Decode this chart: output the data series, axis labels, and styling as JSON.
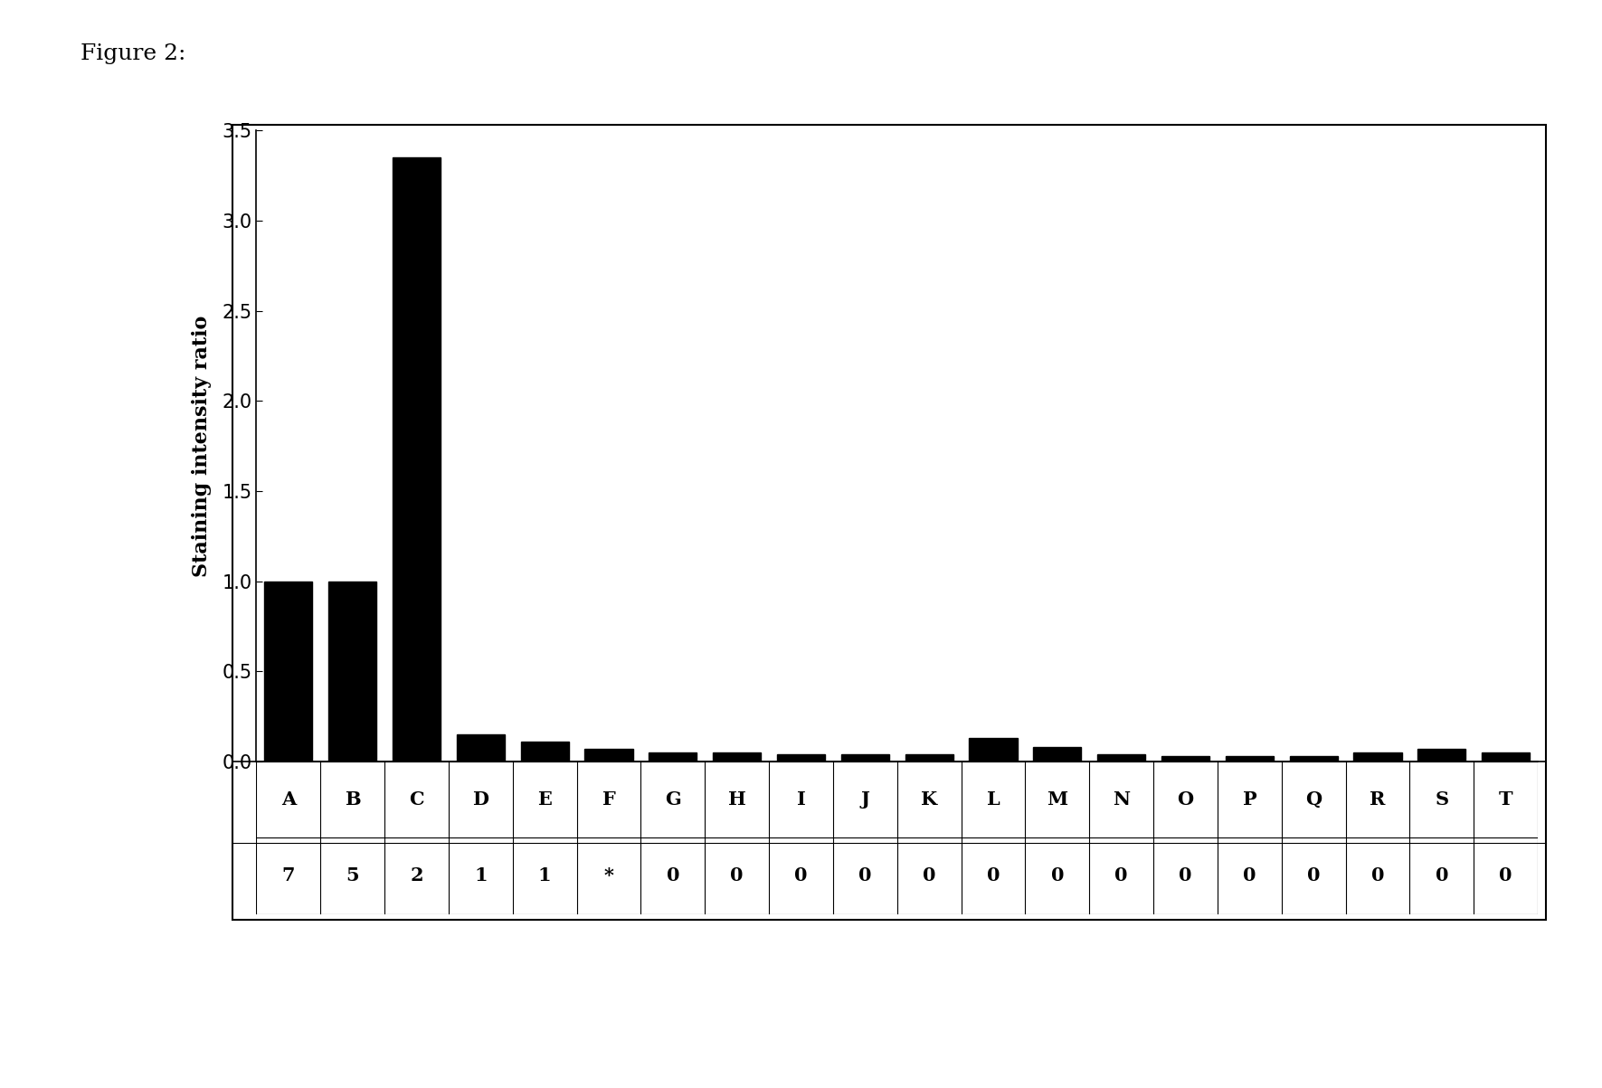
{
  "categories": [
    "A",
    "B",
    "C",
    "D",
    "E",
    "F",
    "G",
    "H",
    "I",
    "J",
    "K",
    "L",
    "M",
    "N",
    "O",
    "P",
    "Q",
    "R",
    "S",
    "T"
  ],
  "sublabels": [
    "7",
    "5",
    "2",
    "1",
    "1",
    "*",
    "0",
    "0",
    "0",
    "0",
    "0",
    "0",
    "0",
    "0",
    "0",
    "0",
    "0",
    "0",
    "0",
    "0"
  ],
  "values": [
    1.0,
    1.0,
    3.35,
    0.15,
    0.11,
    0.07,
    0.05,
    0.05,
    0.04,
    0.04,
    0.04,
    0.13,
    0.08,
    0.04,
    0.03,
    0.03,
    0.03,
    0.05,
    0.07,
    0.05
  ],
  "bar_color": "#000000",
  "ylabel": "Staining intensity ratio",
  "ylim": [
    0.0,
    3.5
  ],
  "yticks": [
    0.0,
    0.5,
    1.0,
    1.5,
    2.0,
    2.5,
    3.0,
    3.5
  ],
  "figure_label": "Figure 2:",
  "figure_label_fontsize": 18,
  "ylabel_fontsize": 16,
  "tick_fontsize": 15,
  "sublabel_fontsize": 15,
  "cat_fontsize": 15,
  "background_color": "#ffffff"
}
